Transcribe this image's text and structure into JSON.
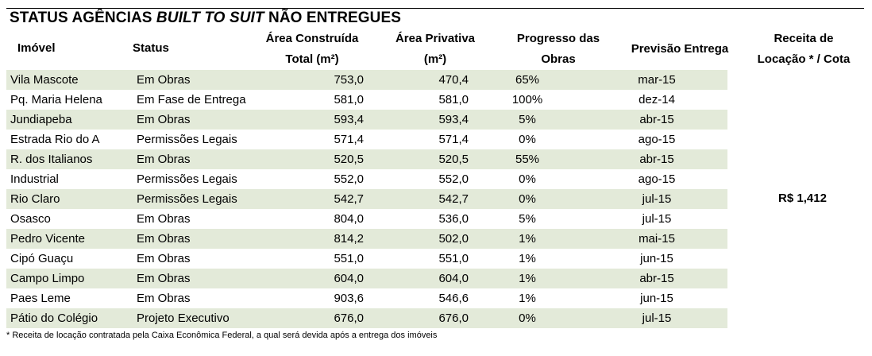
{
  "title": {
    "part1": "STATUS AGÊNCIAS ",
    "part2_italic": "BUILT TO SUIT",
    "part3": " NÃO ENTREGUES"
  },
  "headers": {
    "imovel": "Imóvel",
    "status": "Status",
    "area_construida_l1": "Área Construída",
    "area_construida_l2": "Total (m²)",
    "area_privativa_l1": "Área Privativa",
    "area_privativa_l2": "(m²)",
    "progresso_l1": "Progresso das",
    "progresso_l2": "Obras",
    "previsao": "Previsão Entrega",
    "receita_l1": "Receita de",
    "receita_l2": "Locação * / Cota"
  },
  "rows": [
    {
      "imovel": "Vila Mascote",
      "status": "Em Obras",
      "area_construida": "753,0",
      "area_privativa": "470,4",
      "progresso": "65%",
      "previsao": "mar-15"
    },
    {
      "imovel": "Pq. Maria Helena",
      "status": "Em Fase de Entrega",
      "area_construida": "581,0",
      "area_privativa": "581,0",
      "progresso": "100%",
      "previsao": "dez-14"
    },
    {
      "imovel": "Jundiapeba",
      "status": "Em Obras",
      "area_construida": "593,4",
      "area_privativa": "593,4",
      "progresso": "5%",
      "previsao": "abr-15"
    },
    {
      "imovel": "Estrada Rio do A",
      "status": "Permissões Legais",
      "area_construida": "571,4",
      "area_privativa": "571,4",
      "progresso": "0%",
      "previsao": "ago-15"
    },
    {
      "imovel": "R. dos Italianos",
      "status": "Em Obras",
      "area_construida": "520,5",
      "area_privativa": "520,5",
      "progresso": "55%",
      "previsao": "abr-15"
    },
    {
      "imovel": "Industrial",
      "status": "Permissões Legais",
      "area_construida": "552,0",
      "area_privativa": "552,0",
      "progresso": "0%",
      "previsao": "ago-15"
    },
    {
      "imovel": "Rio Claro",
      "status": "Permissões Legais",
      "area_construida": "542,7",
      "area_privativa": "542,7",
      "progresso": "0%",
      "previsao": "jul-15"
    },
    {
      "imovel": "Osasco",
      "status": "Em Obras",
      "area_construida": "804,0",
      "area_privativa": "536,0",
      "progresso": "5%",
      "previsao": "jul-15"
    },
    {
      "imovel": "Pedro Vicente",
      "status": "Em Obras",
      "area_construida": "814,2",
      "area_privativa": "502,0",
      "progresso": "1%",
      "previsao": "mai-15"
    },
    {
      "imovel": "Cipó Guaçu",
      "status": "Em Obras",
      "area_construida": "551,0",
      "area_privativa": "551,0",
      "progresso": "1%",
      "previsao": "jun-15"
    },
    {
      "imovel": "Campo Limpo",
      "status": "Em Obras",
      "area_construida": "604,0",
      "area_privativa": "604,0",
      "progresso": "1%",
      "previsao": "abr-15"
    },
    {
      "imovel": "Paes Leme",
      "status": "Em Obras",
      "area_construida": "903,6",
      "area_privativa": "546,6",
      "progresso": "1%",
      "previsao": "jun-15"
    },
    {
      "imovel": "Pátio do Colégio",
      "status": "Projeto Executivo",
      "area_construida": "676,0",
      "area_privativa": "676,0",
      "progresso": "0%",
      "previsao": "jul-15"
    }
  ],
  "receita_value": "R$ 1,412",
  "footnote": "* Receita de locação contratada pela Caixa Econômica Federal, a qual será devida após a entrega dos imóveis",
  "colors": {
    "row_band": "#e3ead9"
  }
}
